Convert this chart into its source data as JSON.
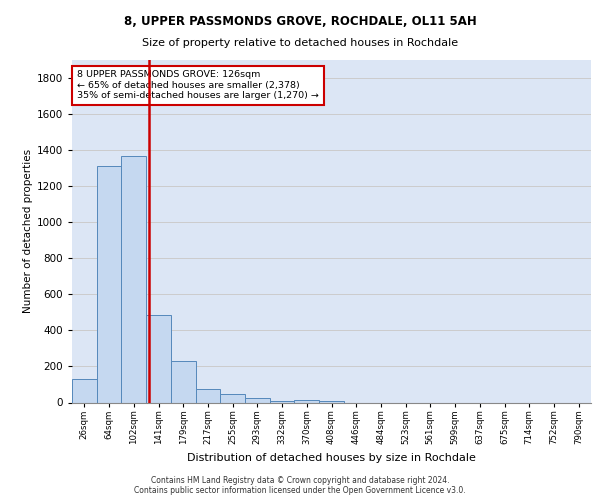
{
  "title1": "8, UPPER PASSMONDS GROVE, ROCHDALE, OL11 5AH",
  "title2": "Size of property relative to detached houses in Rochdale",
  "xlabel": "Distribution of detached houses by size in Rochdale",
  "ylabel": "Number of detached properties",
  "bin_labels": [
    "26sqm",
    "64sqm",
    "102sqm",
    "141sqm",
    "179sqm",
    "217sqm",
    "255sqm",
    "293sqm",
    "332sqm",
    "370sqm",
    "408sqm",
    "446sqm",
    "484sqm",
    "523sqm",
    "561sqm",
    "599sqm",
    "637sqm",
    "675sqm",
    "714sqm",
    "752sqm",
    "790sqm"
  ],
  "bar_heights": [
    130,
    1310,
    1370,
    485,
    230,
    75,
    45,
    25,
    10,
    15,
    10,
    0,
    0,
    0,
    0,
    0,
    0,
    0,
    0,
    0,
    0
  ],
  "bar_color": "#c5d8f0",
  "bar_edge_color": "#5588bb",
  "red_line_color": "#cc0000",
  "annotation_text": "8 UPPER PASSMONDS GROVE: 126sqm\n← 65% of detached houses are smaller (2,378)\n35% of semi-detached houses are larger (1,270) →",
  "annotation_box_color": "#cc0000",
  "ylim": [
    0,
    1900
  ],
  "yticks": [
    0,
    200,
    400,
    600,
    800,
    1000,
    1200,
    1400,
    1600,
    1800
  ],
  "grid_color": "#cccccc",
  "bg_color": "#dce6f5",
  "footer1": "Contains HM Land Registry data © Crown copyright and database right 2024.",
  "footer2": "Contains public sector information licensed under the Open Government Licence v3.0."
}
